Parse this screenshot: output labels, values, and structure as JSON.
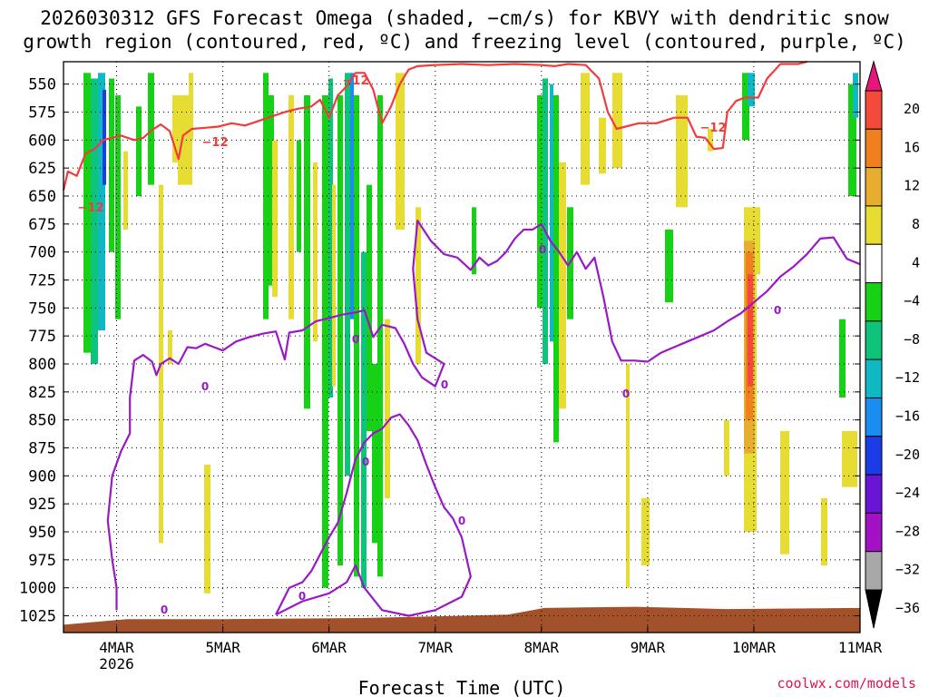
{
  "title": {
    "line1": "2026030312 GFS Forecast Omega (shaded, −cm/s) for KBVY with dendritic snow",
    "line2": "growth region (contoured, red, ºC) and freezing level (contoured, purple, ºC)"
  },
  "credit": "coolwx.com/models",
  "chart_data": {
    "type": "heatmap",
    "title": "2026030312 GFS Forecast Omega (shaded, −cm/s) for KBVY with dendritic snow growth region (contoured, red, ºC) and freezing level (contoured, purple, ºC)",
    "xlabel": "Forecast Time (UTC)",
    "ylabel": "",
    "x_range": [
      "2026-03-03T12:00",
      "2026-03-11T00:00"
    ],
    "x_ticks": [
      {
        "time": "2026-03-04T00:00",
        "label": "4MAR",
        "sublabel": "2026"
      },
      {
        "time": "2026-03-05T00:00",
        "label": "5MAR"
      },
      {
        "time": "2026-03-06T00:00",
        "label": "6MAR"
      },
      {
        "time": "2026-03-07T00:00",
        "label": "7MAR"
      },
      {
        "time": "2026-03-08T00:00",
        "label": "8MAR"
      },
      {
        "time": "2026-03-09T00:00",
        "label": "9MAR"
      },
      {
        "time": "2026-03-10T00:00",
        "label": "10MAR"
      },
      {
        "time": "2026-03-11T00:00",
        "label": "11MAR"
      }
    ],
    "y_axis_units": "hPa",
    "y_range": [
      1040,
      530
    ],
    "y_ticks": [
      550,
      575,
      600,
      625,
      650,
      675,
      700,
      725,
      750,
      775,
      800,
      825,
      850,
      875,
      900,
      925,
      950,
      975,
      1000,
      1025
    ],
    "grid": true,
    "colorbar": {
      "labels": [
        "20",
        "16",
        "12",
        "8",
        "4",
        "−4",
        "−8",
        "−12",
        "−16",
        "−20",
        "−24",
        "−28",
        "−32",
        "−36"
      ],
      "bins": [
        {
          "range": [
            20,
            99
          ],
          "color": "#e8157a"
        },
        {
          "range": [
            16,
            20
          ],
          "color": "#f34a3b"
        },
        {
          "range": [
            12,
            16
          ],
          "color": "#f07f1e"
        },
        {
          "range": [
            8,
            12
          ],
          "color": "#e6ad2e"
        },
        {
          "range": [
            4,
            8
          ],
          "color": "#e6dc32"
        },
        {
          "range": [
            -4,
            4
          ],
          "color": "#ffffff"
        },
        {
          "range": [
            -8,
            -4
          ],
          "color": "#16d116"
        },
        {
          "range": [
            -12,
            -8
          ],
          "color": "#0ec47a"
        },
        {
          "range": [
            -16,
            -12
          ],
          "color": "#0eb9c4"
        },
        {
          "range": [
            -20,
            -16
          ],
          "color": "#1a8ef0"
        },
        {
          "range": [
            -24,
            -20
          ],
          "color": "#1c3de6"
        },
        {
          "range": [
            -28,
            -24
          ],
          "color": "#6a14d8"
        },
        {
          "range": [
            -32,
            -28
          ],
          "color": "#a212c4"
        },
        {
          "range": [
            -36,
            -32
          ],
          "color": "#a8a8a8"
        },
        {
          "range": [
            -99,
            -36
          ],
          "color": "#000000"
        }
      ]
    },
    "contour_labels": {
      "dgz": "−12",
      "freezing": "0"
    },
    "series": [
      {
        "name": "−12",
        "color": "#f03c3c",
        "points": [
          [
            "2026-03-03T12:00",
            645
          ],
          [
            "2026-03-03T13:00",
            628
          ],
          [
            "2026-03-03T15:00",
            632
          ],
          [
            "2026-03-03T17:00",
            612
          ],
          [
            "2026-03-03T19:00",
            608
          ],
          [
            "2026-03-03T21:00",
            600
          ],
          [
            "2026-03-04T01:00",
            596
          ],
          [
            "2026-03-04T04:00",
            600
          ],
          [
            "2026-03-04T06:00",
            598
          ],
          [
            "2026-03-04T08:00",
            591
          ],
          [
            "2026-03-04T10:00",
            586
          ],
          [
            "2026-03-04T12:00",
            592
          ],
          [
            "2026-03-04T14:00",
            617
          ],
          [
            "2026-03-04T15:00",
            596
          ],
          [
            "2026-03-04T17:00",
            590
          ],
          [
            "2026-03-04T20:00",
            589
          ],
          [
            "2026-03-04T23:00",
            588
          ],
          [
            "2026-03-05T02:00",
            585
          ],
          [
            "2026-03-05T05:00",
            587
          ],
          [
            "2026-03-05T08:00",
            583
          ],
          [
            "2026-03-05T11:00",
            579
          ],
          [
            "2026-03-05T14:00",
            575
          ],
          [
            "2026-03-05T17:00",
            572
          ],
          [
            "2026-03-05T20:00",
            570
          ],
          [
            "2026-03-05T22:00",
            564
          ],
          [
            "2026-03-06T00:00",
            580
          ],
          [
            "2026-03-06T02:00",
            560
          ],
          [
            "2026-03-06T04:00",
            552
          ],
          [
            "2026-03-06T06:00",
            540
          ],
          [
            "2026-03-06T08:00",
            540
          ],
          [
            "2026-03-06T10:00",
            555
          ],
          [
            "2026-03-06T12:00",
            585
          ],
          [
            "2026-03-06T14:00",
            570
          ],
          [
            "2026-03-06T16:00",
            550
          ],
          [
            "2026-03-06T18:00",
            537
          ],
          [
            "2026-03-06T20:00",
            534
          ],
          [
            "2026-03-07T00:00",
            533
          ],
          [
            "2026-03-07T06:00",
            532
          ],
          [
            "2026-03-07T12:00",
            533
          ],
          [
            "2026-03-07T18:00",
            532
          ],
          [
            "2026-03-08T00:00",
            533
          ],
          [
            "2026-03-08T03:00",
            534
          ],
          [
            "2026-03-08T06:00",
            532
          ],
          [
            "2026-03-08T10:00",
            533
          ],
          [
            "2026-03-08T13:00",
            545
          ],
          [
            "2026-03-08T15:00",
            575
          ],
          [
            "2026-03-08T17:00",
            590
          ],
          [
            "2026-03-08T19:00",
            588
          ],
          [
            "2026-03-08T22:00",
            585
          ],
          [
            "2026-03-09T02:00",
            585
          ],
          [
            "2026-03-09T06:00",
            580
          ],
          [
            "2026-03-09T09:00",
            580
          ],
          [
            "2026-03-09T11:00",
            597
          ],
          [
            "2026-03-09T13:00",
            598
          ],
          [
            "2026-03-09T15:00",
            608
          ],
          [
            "2026-03-09T17:00",
            607
          ],
          [
            "2026-03-09T18:00",
            575
          ],
          [
            "2026-03-09T20:00",
            565
          ],
          [
            "2026-03-09T22:00",
            562
          ],
          [
            "2026-03-10T01:00",
            562
          ],
          [
            "2026-03-10T03:00",
            545
          ],
          [
            "2026-03-10T06:00",
            532
          ],
          [
            "2026-03-10T10:00",
            532
          ],
          [
            "2026-03-10T12:00",
            530
          ]
        ]
      },
      {
        "name": "0",
        "color": "#9a18c6",
        "points": [
          [
            "2026-03-04T00:00",
            1020
          ],
          [
            "2026-03-04T00:00",
            1000
          ],
          [
            "2026-03-03T23:00",
            975
          ],
          [
            "2026-03-03T22:00",
            940
          ],
          [
            "2026-03-03T23:00",
            900
          ],
          [
            "2026-03-04T01:00",
            878
          ],
          [
            "2026-03-04T03:00",
            862
          ],
          [
            "2026-03-04T03:00",
            830
          ],
          [
            "2026-03-04T04:00",
            797
          ],
          [
            "2026-03-04T06:00",
            792
          ],
          [
            "2026-03-04T08:00",
            798
          ],
          [
            "2026-03-04T09:00",
            810
          ],
          [
            "2026-03-04T10:00",
            800
          ],
          [
            "2026-03-04T12:00",
            795
          ],
          [
            "2026-03-04T14:00",
            800
          ],
          [
            "2026-03-04T16:00",
            785
          ],
          [
            "2026-03-04T18:00",
            786
          ],
          [
            "2026-03-04T20:00",
            782
          ],
          [
            "2026-03-04T22:00",
            785
          ],
          [
            "2026-03-05T00:00",
            788
          ],
          [
            "2026-03-05T03:00",
            780
          ],
          [
            "2026-03-05T06:00",
            776
          ],
          [
            "2026-03-05T09:00",
            773
          ],
          [
            "2026-03-05T12:00",
            771
          ],
          [
            "2026-03-05T14:00",
            796
          ],
          [
            "2026-03-05T15:00",
            772
          ],
          [
            "2026-03-05T18:00",
            770
          ],
          [
            "2026-03-05T21:00",
            762
          ],
          [
            "2026-03-06T00:00",
            759
          ],
          [
            "2026-03-06T03:00",
            756
          ],
          [
            "2026-03-06T06:00",
            754
          ],
          [
            "2026-03-06T08:00",
            752
          ],
          [
            "2026-03-06T10:00",
            776
          ],
          [
            "2026-03-06T12:00",
            765
          ],
          [
            "2026-03-06T15:00",
            768
          ],
          [
            "2026-03-06T17:00",
            782
          ],
          [
            "2026-03-06T19:00",
            800
          ],
          [
            "2026-03-06T21:00",
            812
          ],
          [
            "2026-03-07T00:00",
            820
          ],
          [
            "2026-03-07T02:00",
            800
          ],
          [
            "2026-03-06T22:00",
            790
          ],
          [
            "2026-03-06T20:00",
            760
          ],
          [
            "2026-03-06T19:00",
            715
          ],
          [
            "2026-03-06T20:00",
            672
          ],
          [
            "2026-03-06T23:00",
            690
          ],
          [
            "2026-03-07T02:00",
            702
          ],
          [
            "2026-03-07T05:00",
            705
          ],
          [
            "2026-03-07T08:00",
            716
          ],
          [
            "2026-03-07T10:00",
            705
          ],
          [
            "2026-03-07T12:00",
            712
          ],
          [
            "2026-03-07T14:00",
            708
          ],
          [
            "2026-03-07T16:00",
            700
          ],
          [
            "2026-03-07T18:00",
            688
          ],
          [
            "2026-03-07T20:00",
            680
          ],
          [
            "2026-03-07T22:00",
            680
          ],
          [
            "2026-03-08T00:00",
            675
          ],
          [
            "2026-03-08T02:00",
            690
          ],
          [
            "2026-03-08T04:00",
            700
          ],
          [
            "2026-03-08T06:00",
            712
          ],
          [
            "2026-03-08T08:00",
            700
          ],
          [
            "2026-03-08T10:00",
            715
          ],
          [
            "2026-03-08T12:00",
            705
          ],
          [
            "2026-03-08T14:00",
            740
          ],
          [
            "2026-03-08T16:00",
            780
          ],
          [
            "2026-03-08T18:00",
            797
          ],
          [
            "2026-03-08T21:00",
            797
          ],
          [
            "2026-03-09T00:00",
            798
          ],
          [
            "2026-03-09T03:00",
            790
          ],
          [
            "2026-03-09T06:00",
            785
          ],
          [
            "2026-03-09T09:00",
            780
          ],
          [
            "2026-03-09T12:00",
            775
          ],
          [
            "2026-03-09T15:00",
            770
          ],
          [
            "2026-03-09T18:00",
            762
          ],
          [
            "2026-03-09T21:00",
            755
          ],
          [
            "2026-03-10T00:00",
            745
          ],
          [
            "2026-03-10T03:00",
            735
          ],
          [
            "2026-03-10T06:00",
            722
          ],
          [
            "2026-03-10T09:00",
            713
          ],
          [
            "2026-03-10T12:00",
            702
          ],
          [
            "2026-03-10T15:00",
            688
          ],
          [
            "2026-03-10T18:00",
            687
          ],
          [
            "2026-03-10T21:00",
            706
          ],
          [
            "2026-03-11T00:00",
            711
          ]
        ]
      },
      {
        "name": "0",
        "color": "#9a18c6",
        "points": [
          [
            "2026-03-05T12:00",
            1024
          ],
          [
            "2026-03-05T15:00",
            1000
          ],
          [
            "2026-03-05T18:00",
            995
          ],
          [
            "2026-03-05T20:00",
            985
          ],
          [
            "2026-03-05T22:00",
            970
          ],
          [
            "2026-03-06T00:00",
            955
          ],
          [
            "2026-03-06T02:00",
            942
          ],
          [
            "2026-03-06T04:00",
            915
          ],
          [
            "2026-03-06T06:00",
            885
          ],
          [
            "2026-03-06T08:00",
            870
          ],
          [
            "2026-03-06T10:00",
            862
          ],
          [
            "2026-03-06T12:00",
            858
          ],
          [
            "2026-03-06T14:00",
            848
          ],
          [
            "2026-03-06T16:00",
            845
          ],
          [
            "2026-03-06T18:00",
            855
          ],
          [
            "2026-03-06T20:00",
            868
          ],
          [
            "2026-03-06T22:00",
            890
          ],
          [
            "2026-03-07T00:00",
            910
          ],
          [
            "2026-03-07T02:00",
            928
          ],
          [
            "2026-03-07T04:00",
            938
          ],
          [
            "2026-03-07T06:00",
            955
          ],
          [
            "2026-03-07T08:00",
            990
          ],
          [
            "2026-03-07T06:00",
            1008
          ],
          [
            "2026-03-07T00:00",
            1020
          ],
          [
            "2026-03-06T18:00",
            1025
          ],
          [
            "2026-03-06T12:00",
            1020
          ],
          [
            "2026-03-06T08:00",
            1000
          ],
          [
            "2026-03-06T06:00",
            980
          ],
          [
            "2026-03-06T04:00",
            995
          ],
          [
            "2026-03-06T00:00",
            1005
          ],
          [
            "2026-03-05T18:00",
            1012
          ],
          [
            "2026-03-05T12:00",
            1024
          ]
        ]
      }
    ]
  }
}
